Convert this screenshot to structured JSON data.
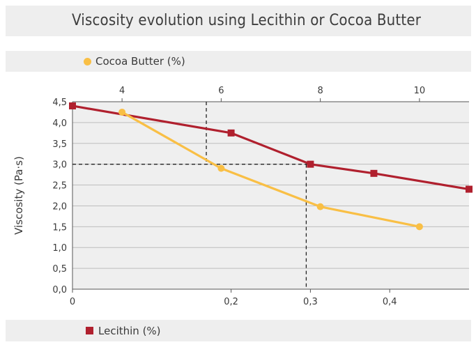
{
  "title": "Viscosity evolution using Lecithin or Cocoa Butter",
  "colors": {
    "cocoa": "#f9bf45",
    "lecithin": "#b0202e",
    "plot_bg": "#efefef",
    "grid": "#bdbdbd",
    "band": "#eeeeee"
  },
  "chart_data": {
    "type": "line",
    "title": "Viscosity evolution using Lecithin or Cocoa Butter",
    "ylabel": "Viscosity (Pa·s)",
    "ylim": [
      0,
      4.5
    ],
    "y_ticks": [
      "0,0",
      "0,5",
      "1,0",
      "1,5",
      "2,0",
      "2,5",
      "3,0",
      "3,5",
      "4,0",
      "4,5"
    ],
    "y_tick_values": [
      0,
      0.5,
      1,
      1.5,
      2,
      2.5,
      3,
      3.5,
      4,
      4.5
    ],
    "grid": true,
    "x_bottom": {
      "label": "Lecithin (%)",
      "range": [
        0,
        0.5
      ],
      "ticks": [
        "0",
        "0,2",
        "0,3",
        "0,4"
      ],
      "tick_values": [
        0,
        0.2,
        0.3,
        0.4
      ]
    },
    "x_top": {
      "label": "Cocoa Butter (%)",
      "range": [
        3,
        11
      ],
      "ticks": [
        "4",
        "6",
        "8",
        "10"
      ],
      "tick_values": [
        4,
        6,
        8,
        10
      ]
    },
    "series": [
      {
        "name": "Lecithin (%)",
        "axis": "bottom",
        "marker": "square",
        "color": "#b0202e",
        "x": [
          0,
          0.2,
          0.3,
          0.38,
          0.5
        ],
        "y": [
          4.4,
          3.75,
          3.0,
          2.78,
          2.4
        ]
      },
      {
        "name": "Cocoa Butter (%)",
        "axis": "top",
        "marker": "circle",
        "color": "#f9bf45",
        "x": [
          4,
          6,
          8,
          10
        ],
        "y": [
          4.25,
          2.9,
          1.98,
          1.5
        ]
      }
    ],
    "reference_lines": [
      {
        "axis": "y",
        "value": 3.0
      },
      {
        "axis": "bottom",
        "value": 0.3
      },
      {
        "axis": "top",
        "value": 5.7
      }
    ]
  }
}
